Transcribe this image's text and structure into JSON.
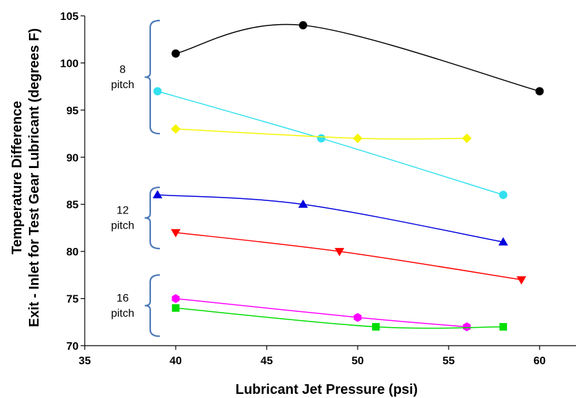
{
  "chart_data": {
    "type": "line",
    "xlabel": "Lubricant Jet Pressure (psi)",
    "ylabel_line1": "Temperature Difference",
    "ylabel_line2": "Exit - Inlet  for Test Gear Lubricant (degrees F)",
    "xlim": [
      35,
      62
    ],
    "ylim": [
      70,
      105
    ],
    "xticks": [
      35,
      40,
      45,
      50,
      55,
      60
    ],
    "yticks": [
      70,
      75,
      80,
      85,
      90,
      95,
      100,
      105
    ],
    "grid": false,
    "series": [
      {
        "color": "#000000",
        "marker": "circle",
        "x": [
          40,
          47,
          60
        ],
        "y": [
          101,
          104,
          97
        ]
      },
      {
        "color": "#33E0F0",
        "marker": "circle",
        "x": [
          39,
          48,
          58
        ],
        "y": [
          97,
          92,
          86
        ]
      },
      {
        "color": "#F5F500",
        "marker": "diamond",
        "x": [
          40,
          50,
          56
        ],
        "y": [
          93,
          92,
          92
        ]
      },
      {
        "color": "#0000DD",
        "marker": "triangle-up",
        "x": [
          39,
          47,
          58
        ],
        "y": [
          86,
          85,
          81
        ]
      },
      {
        "color": "#FF0000",
        "marker": "triangle-down",
        "x": [
          40,
          49,
          59
        ],
        "y": [
          82,
          80,
          77
        ]
      },
      {
        "color": "#FF00FF",
        "marker": "hexagon",
        "x": [
          40,
          50,
          56
        ],
        "y": [
          75,
          73,
          72
        ]
      },
      {
        "color": "#00DD00",
        "marker": "square",
        "x": [
          40,
          51,
          58
        ],
        "y": [
          74,
          72,
          72
        ]
      }
    ],
    "groups": [
      {
        "line1": "8",
        "line2": "pitch",
        "y_top": 104.5,
        "y_bottom": 92.5
      },
      {
        "line1": "12",
        "line2": "pitch",
        "y_top": 86.8,
        "y_bottom": 80.3
      },
      {
        "line1": "16",
        "line2": "pitch",
        "y_top": 77.5,
        "y_bottom": 71
      }
    ]
  }
}
